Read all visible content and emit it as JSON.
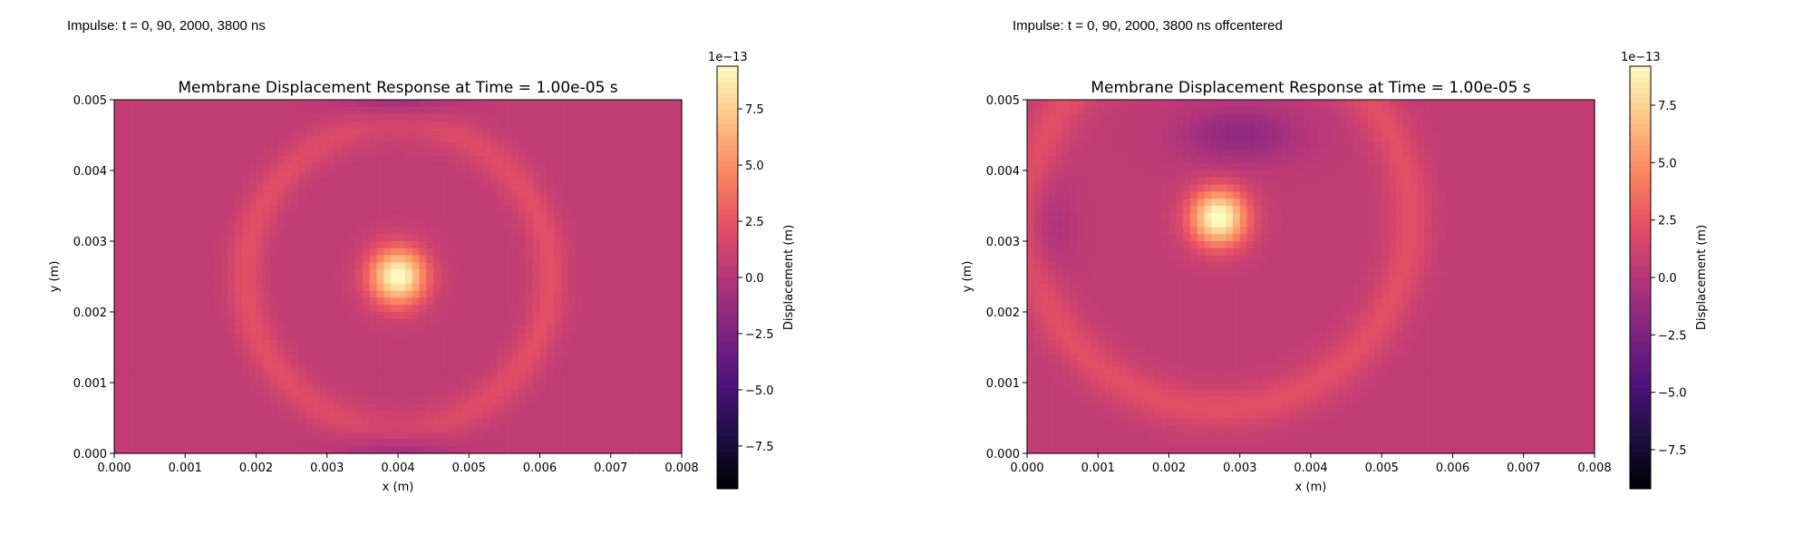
{
  "colormap": {
    "name": "magma",
    "stops": [
      "#000004",
      "#1c1044",
      "#4f127b",
      "#812581",
      "#b5367a",
      "#e55064",
      "#fb8761",
      "#fec287",
      "#fcfdbf"
    ]
  },
  "chart_data": [
    {
      "type": "heatmap",
      "caption": "Impulse: t = 0, 90, 2000, 3800 ns",
      "title": "Membrane Displacement Response at Time = 1.00e-05 s",
      "xlabel": "x (m)",
      "ylabel": "y (m)",
      "xlim": [
        0.0,
        0.008
      ],
      "ylim": [
        0.0,
        0.005
      ],
      "xticks": [
        "0.000",
        "0.001",
        "0.002",
        "0.003",
        "0.004",
        "0.005",
        "0.006",
        "0.007",
        "0.008"
      ],
      "yticks": [
        "0.000",
        "0.001",
        "0.002",
        "0.003",
        "0.004",
        "0.005"
      ],
      "colorbar": {
        "label": "Displacement (m)",
        "multiplier": "1e−13",
        "vlim": [
          -9.4,
          9.4
        ],
        "ticks": [
          -7.5,
          -5.0,
          -2.5,
          0.0,
          2.5,
          5.0,
          7.5
        ],
        "tick_labels": [
          "−7.5",
          "−5.0",
          "−2.5",
          "0.0",
          "2.5",
          "5.0",
          "7.5"
        ]
      },
      "impulse_center": [
        0.004,
        0.0025
      ]
    },
    {
      "type": "heatmap",
      "caption": "Impulse: t = 0, 90, 2000, 3800 ns offcentered",
      "title": "Membrane Displacement Response at Time = 1.00e-05 s",
      "xlabel": "x (m)",
      "ylabel": "y (m)",
      "xlim": [
        0.0,
        0.008
      ],
      "ylim": [
        0.0,
        0.005
      ],
      "xticks": [
        "0.000",
        "0.001",
        "0.002",
        "0.003",
        "0.004",
        "0.005",
        "0.006",
        "0.007",
        "0.008"
      ],
      "yticks": [
        "0.000",
        "0.001",
        "0.002",
        "0.003",
        "0.004",
        "0.005"
      ],
      "colorbar": {
        "label": "Displacement (m)",
        "multiplier": "1e−13",
        "vlim": [
          -9.2,
          9.2
        ],
        "ticks": [
          -7.5,
          -5.0,
          -2.5,
          0.0,
          2.5,
          5.0,
          7.5
        ],
        "tick_labels": [
          "−7.5",
          "−5.0",
          "−2.5",
          "0.0",
          "2.5",
          "5.0",
          "7.5"
        ]
      },
      "impulse_center": [
        0.0027,
        0.00333
      ]
    }
  ]
}
